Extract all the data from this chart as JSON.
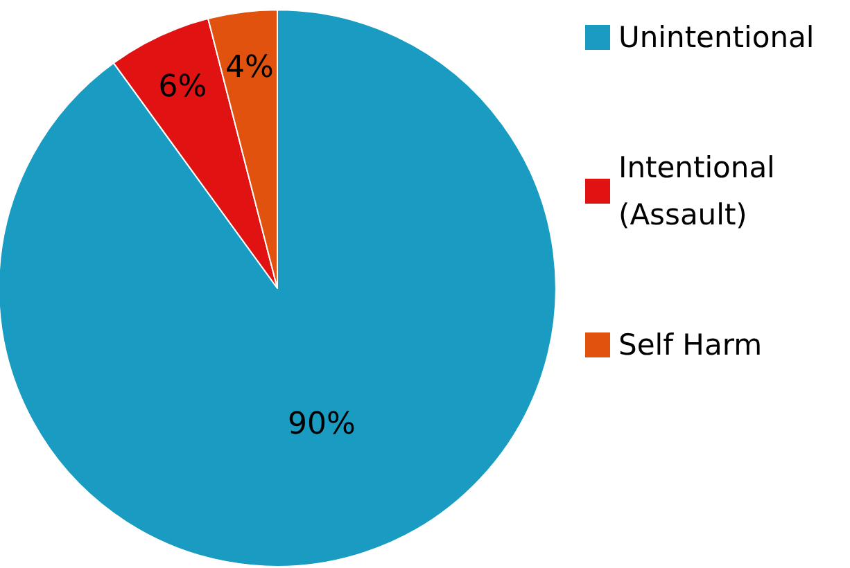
{
  "chart_data": {
    "type": "pie",
    "categories": [
      "Unintentional",
      "Intentional (Assault)",
      "Self Harm"
    ],
    "values": [
      90,
      6,
      4
    ],
    "colors": [
      "#1a9cc2",
      "#e01212",
      "#e0520e"
    ],
    "value_labels": [
      "90%",
      "6%",
      "4%"
    ],
    "legend": "right"
  }
}
